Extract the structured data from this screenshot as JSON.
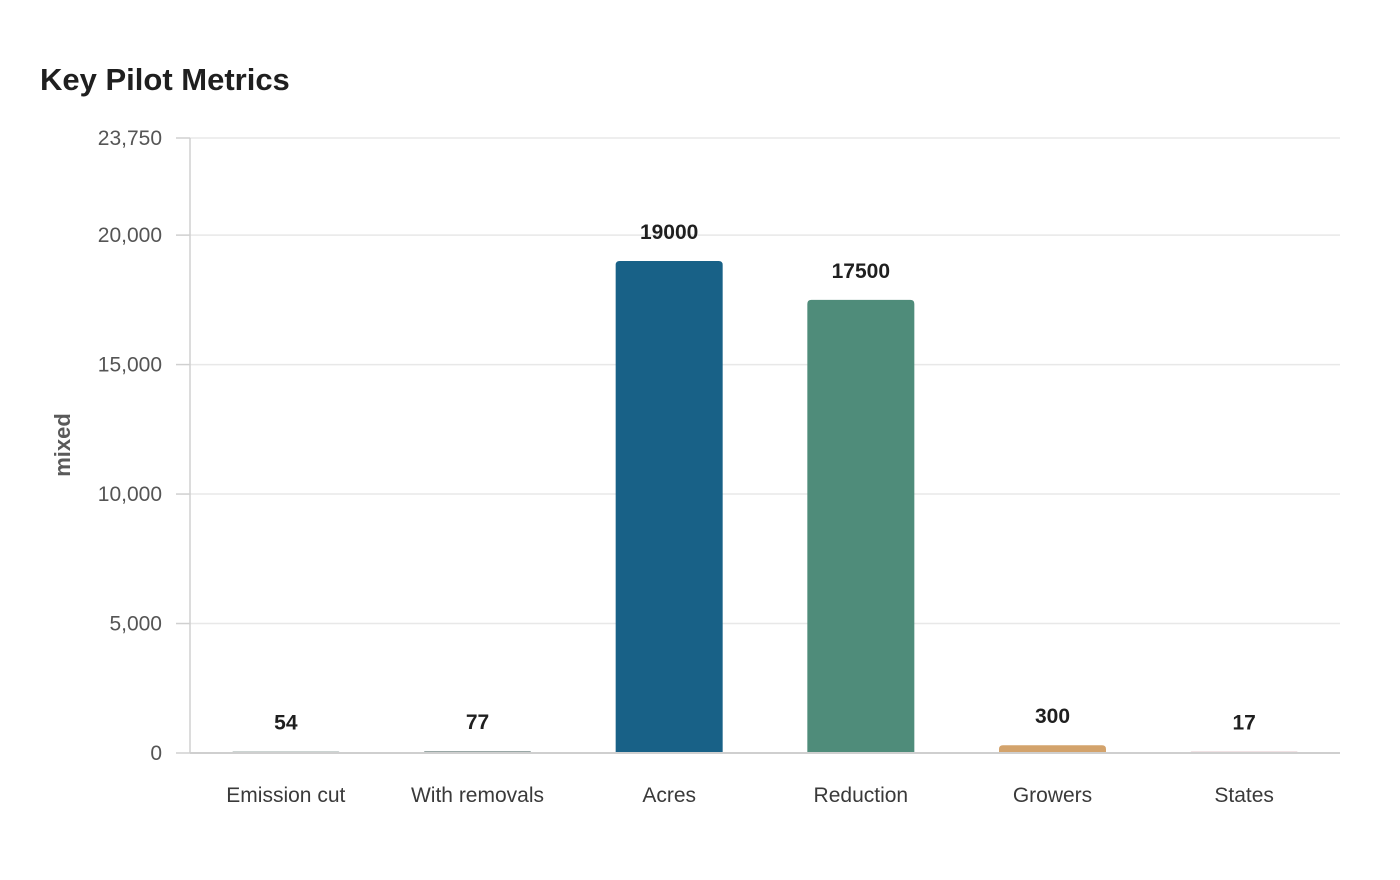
{
  "chart_data": {
    "type": "bar",
    "title": "Key Pilot Metrics",
    "xlabel": "",
    "ylabel": "mixed",
    "categories": [
      "Emission cut",
      "With removals",
      "Acres",
      "Reduction",
      "Growers",
      "States"
    ],
    "values": [
      54,
      77,
      19000,
      17500,
      300,
      17
    ],
    "data_labels": [
      "54",
      "77",
      "19000",
      "17500",
      "300",
      "17"
    ],
    "colors": [
      "#9aa8a6",
      "#9aa8a6",
      "#186187",
      "#4f8c7a",
      "#d3a36c",
      "#e0c5c8"
    ],
    "ylim": [
      0,
      23750
    ],
    "yticks": [
      0,
      5000,
      10000,
      15000,
      20000,
      23750
    ],
    "ytick_labels": [
      "0",
      "5,000",
      "10,000",
      "15,000",
      "20,000",
      "23,750"
    ],
    "grid": true,
    "legend": "none"
  }
}
